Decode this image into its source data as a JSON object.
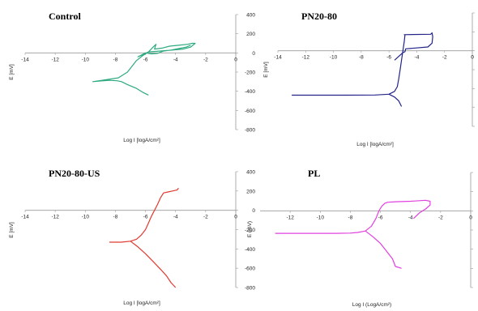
{
  "chart_data": [
    {
      "type": "line",
      "title": "Control",
      "xlabel": "Log I [logA/cm²]",
      "ylabel": "E [mV]",
      "xlim": [
        -14,
        0
      ],
      "ylim": [
        -800,
        400
      ],
      "xticks": [
        -14,
        -12,
        -10,
        -8,
        -6,
        -4,
        -2,
        0
      ],
      "yticks": [
        400,
        200,
        0,
        -200,
        -400,
        -600,
        -800
      ],
      "color": "#2eaa7e",
      "series": [
        {
          "x": [
            -5.8,
            -6.2,
            -6.6,
            -7.2,
            -7.6,
            -7.9,
            -8.4,
            -9.5,
            -7.8,
            -7.2,
            -6.9,
            -6.6,
            -6.2,
            -5.8,
            -5.5,
            -5.3,
            -5.4,
            -4.9,
            -4.4,
            -3.8,
            -3.2,
            -2.9,
            -2.7,
            -3.0,
            -3.5,
            -4.2,
            -5.0,
            -5.8,
            -6.2,
            -6.5,
            -6.0,
            -5.6,
            -5.2,
            -4.8,
            -4.3,
            -3.8,
            -3.3,
            -3.0
          ],
          "y": [
            -440,
            -410,
            -370,
            -330,
            -300,
            -290,
            -285,
            -300,
            -260,
            -200,
            -140,
            -80,
            -30,
            10,
            60,
            90,
            40,
            50,
            70,
            80,
            90,
            100,
            100,
            60,
            40,
            30,
            20,
            10,
            -20,
            -40,
            0,
            -10,
            -5,
            20,
            30,
            45,
            60,
            80
          ]
        }
      ]
    },
    {
      "type": "line",
      "title": "PN20-80",
      "xlabel": "Log I [logA/cm²]",
      "ylabel": "E [mV]",
      "xlim": [
        -14,
        0
      ],
      "ylim": [
        -800,
        400
      ],
      "xticks": [
        -14,
        -12,
        -10,
        -8,
        -6,
        -4,
        -2,
        0
      ],
      "yticks": [
        400,
        200,
        0,
        -200,
        -400,
        -600,
        -800
      ],
      "color": "#23238a",
      "series": [
        {
          "x": [
            -13.0,
            -11.0,
            -9.0,
            -7.0,
            -6.0,
            -5.6,
            -5.4,
            -5.3,
            -5.2,
            -5.1,
            -5.0,
            -4.9,
            -4.85,
            -4.9,
            -3.0,
            -2.9,
            -2.85,
            -2.9,
            -3.2,
            -4.8,
            -4.85,
            -5.0,
            -5.3,
            -5.6
          ],
          "y": [
            -470,
            -470,
            -470,
            -468,
            -460,
            -430,
            -380,
            -300,
            -200,
            -100,
            0,
            100,
            170,
            170,
            175,
            190,
            150,
            80,
            40,
            20,
            -10,
            -20,
            -60,
            -100
          ]
        },
        {
          "x": [
            -6.0,
            -5.6,
            -5.3,
            -5.1
          ],
          "y": [
            -460,
            -490,
            -530,
            -590
          ]
        }
      ]
    },
    {
      "type": "line",
      "title": "PN20-80-US",
      "xlabel": "Log I [logA/cm²]",
      "ylabel": "E [mV]",
      "xlim": [
        -14,
        0
      ],
      "ylim": [
        -800,
        400
      ],
      "xticks": [
        -14,
        -12,
        -10,
        -8,
        -6,
        -4,
        -2,
        0
      ],
      "yticks": [
        400,
        200,
        0,
        -200,
        -400,
        -600,
        -800
      ],
      "color": "#e03a30",
      "series": [
        {
          "x": [
            -8.4,
            -7.6,
            -7.0,
            -6.6,
            -6.3,
            -6.0,
            -5.8,
            -5.6,
            -5.4,
            -5.2,
            -5.0,
            -4.8,
            -4.5,
            -4.2,
            -3.9,
            -3.8
          ],
          "y": [
            -330,
            -330,
            -320,
            -300,
            -260,
            -200,
            -130,
            -60,
            0,
            60,
            130,
            180,
            190,
            200,
            210,
            230
          ]
        },
        {
          "x": [
            -7.0,
            -6.5,
            -6.0,
            -5.5,
            -5.0,
            -4.6,
            -4.3,
            -4.0
          ],
          "y": [
            -320,
            -380,
            -450,
            -530,
            -610,
            -680,
            -750,
            -800
          ]
        }
      ]
    },
    {
      "type": "line",
      "title": "PL",
      "xlabel": "Log I (LogA/cm²)",
      "ylabel": "E (mV)",
      "xlim": [
        -14,
        0
      ],
      "ylim": [
        -800,
        400
      ],
      "xticks": [
        -12,
        -10,
        -8,
        -6,
        -4,
        -2,
        0
      ],
      "yticks": [
        400,
        200,
        0,
        -200,
        -400,
        -600,
        -800
      ],
      "color": "#e040e0",
      "series": [
        {
          "x": [
            -13.0,
            -11.0,
            -9.0,
            -8.0,
            -7.5,
            -7.0,
            -6.6,
            -6.3,
            -6.1,
            -5.9,
            -5.7,
            -5.5,
            -5.0,
            -4.0,
            -3.0,
            -2.7,
            -2.7,
            -3.0,
            -3.4,
            -3.8
          ],
          "y": [
            -235,
            -235,
            -235,
            -232,
            -225,
            -210,
            -160,
            -80,
            0,
            50,
            80,
            90,
            95,
            100,
            110,
            100,
            60,
            20,
            -20,
            -80
          ]
        },
        {
          "x": [
            -7.0,
            -6.5,
            -6.0,
            -5.6,
            -5.2,
            -5.0,
            -4.6
          ],
          "y": [
            -210,
            -270,
            -340,
            -420,
            -500,
            -580,
            -600
          ]
        }
      ]
    }
  ]
}
